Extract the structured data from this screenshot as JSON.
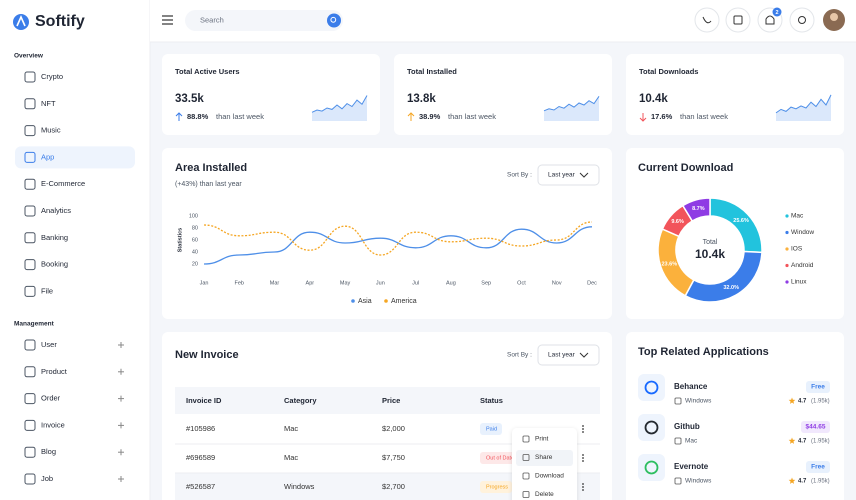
{
  "brand": "Softify",
  "search_placeholder": "Search",
  "notification_count": "2",
  "sidebar": {
    "sections": [
      {
        "title": "Overview",
        "items": [
          "Crypto",
          "NFT",
          "Music",
          "App",
          "E-Commerce",
          "Analytics",
          "Banking",
          "Booking",
          "File"
        ]
      },
      {
        "title": "Management",
        "items": [
          "User",
          "Product",
          "Order",
          "Invoice",
          "Blog",
          "Job"
        ]
      }
    ]
  },
  "stats": [
    {
      "title": "Total Active Users",
      "value": "33.5k",
      "change": "88.8%",
      "note": "than last week",
      "trend": {
        "values": [
          30,
          38,
          34,
          45,
          40,
          55,
          42,
          60,
          50,
          72,
          58,
          88
        ],
        "ylim": [
          0,
          100
        ]
      }
    },
    {
      "title": "Total Installed",
      "value": "13.8k",
      "change": "38.9%",
      "note": "than last week",
      "trend": {
        "values": [
          35,
          42,
          38,
          50,
          44,
          58,
          48,
          62,
          55,
          70,
          60,
          85
        ],
        "ylim": [
          0,
          100
        ]
      }
    },
    {
      "title": "Total Downloads",
      "value": "10.4k",
      "change": "17.6%",
      "note": "than last week",
      "trend": {
        "values": [
          28,
          40,
          33,
          48,
          42,
          52,
          45,
          65,
          50,
          75,
          55,
          90
        ],
        "ylim": [
          0,
          100
        ]
      }
    }
  ],
  "area_installed": {
    "title": "Area Installed",
    "subtitle": "(+43%) than last year",
    "sort_label": "Sort By :",
    "sort_value": "Last year",
    "chart_data": {
      "type": "line",
      "y_label": "Statistics",
      "categories": [
        "Jan",
        "Feb",
        "Mar",
        "Apr",
        "May",
        "Jun",
        "Jul",
        "Aug",
        "Sep",
        "Oct",
        "Nov",
        "Dec"
      ],
      "series": [
        {
          "name": "Asia",
          "color": "#4e8fe8",
          "values": [
            20,
            35,
            40,
            73,
            55,
            63,
            47,
            67,
            47,
            78,
            55,
            82
          ]
        },
        {
          "name": "America",
          "color": "#f5a623",
          "values": [
            85,
            67,
            73,
            43,
            83,
            35,
            73,
            57,
            63,
            50,
            60,
            90
          ]
        }
      ],
      "ylim": [
        0,
        100
      ],
      "yticks": [
        20,
        40,
        60,
        80,
        100
      ],
      "grid": false
    }
  },
  "current_download": {
    "title": "Current Download",
    "chart_data": {
      "type": "pie",
      "center_label": "Total",
      "center_value": "10.4k",
      "categories": [
        "Mac",
        "Window",
        "IOS",
        "Android",
        "Linux"
      ],
      "values": [
        25.6,
        32.0,
        23.6,
        9.6,
        8.7
      ],
      "value_labels": [
        "25.6%",
        "32.0%",
        "23.6%",
        "9.6%",
        "8.7%"
      ],
      "colors": [
        "#22c3dd",
        "#3b7de9",
        "#fbb13c",
        "#f2545b",
        "#8f3ce4"
      ]
    }
  },
  "invoice": {
    "title": "New Invoice",
    "sort_label": "Sort By :",
    "sort_value": "Last year",
    "columns": [
      "Invoice ID",
      "Category",
      "Price",
      "Status"
    ],
    "rows": [
      [
        "#105986",
        "Mac",
        "$2,000",
        "Paid"
      ],
      [
        "#696589",
        "Mac",
        "$7,750",
        "Out of Date"
      ],
      [
        "#526587",
        "Windows",
        "$2,700",
        "Progress"
      ]
    ],
    "menu": [
      "Print",
      "Share",
      "Download",
      "Delete"
    ]
  },
  "apps": {
    "title": "Top Related Applications",
    "items": [
      {
        "name": "Behance",
        "platform": "Windows",
        "price": "Free",
        "rating": "4.7",
        "reviews": "(1.95k)"
      },
      {
        "name": "Github",
        "platform": "Mac",
        "price": "$44.65",
        "rating": "4.7",
        "reviews": "(1.95k)"
      },
      {
        "name": "Evernote",
        "platform": "Windows",
        "price": "Free",
        "rating": "4.7",
        "reviews": "(1.95k)"
      }
    ]
  }
}
